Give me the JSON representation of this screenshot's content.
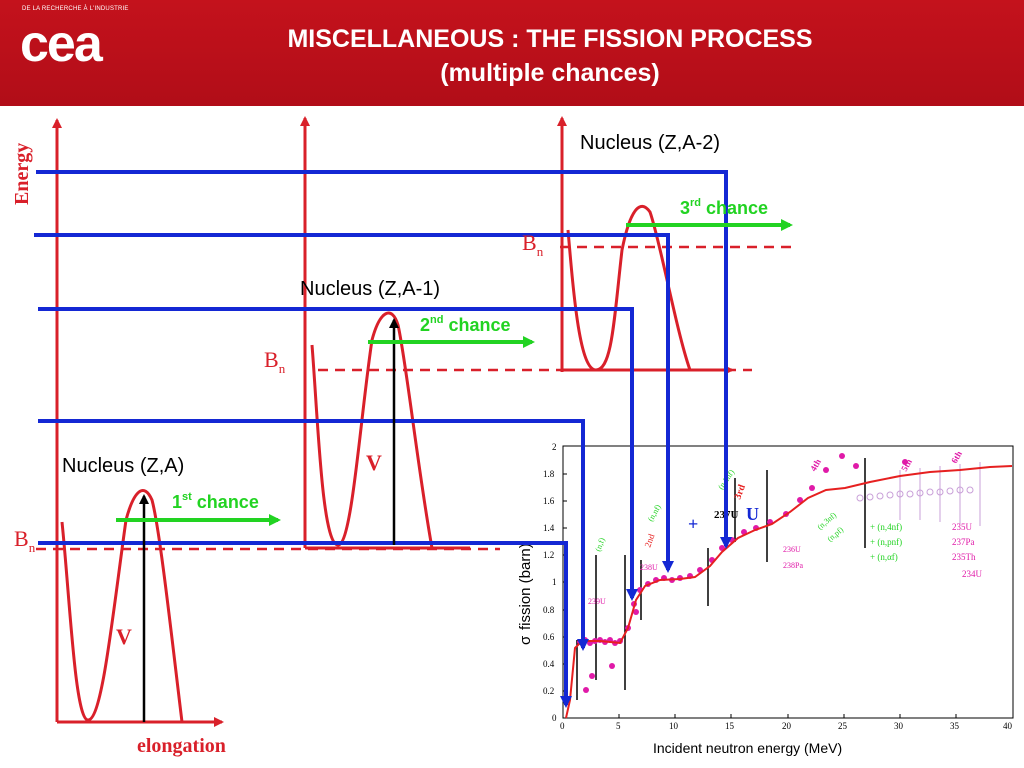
{
  "logo": {
    "tagline": "DE LA RECHERCHE À L'INDUSTRIE",
    "name": "cea"
  },
  "title": {
    "line1": "MISCELLANEOUS : THE FISSION PROCESS",
    "line2": "(multiple chances)"
  },
  "axes": {
    "energy": "Energy",
    "elongation": "elongation"
  },
  "nuclei": {
    "n1": {
      "label": "Nucleus (Z,A)",
      "chance": "1",
      "chance_sup": "st",
      "chance_text": " chance"
    },
    "n2": {
      "label": "Nucleus (Z,A-1)",
      "chance": "2",
      "chance_sup": "nd",
      "chance_text": " chance"
    },
    "n3": {
      "label": "Nucleus (Z,A-2)",
      "chance": "3",
      "chance_sup": "rd",
      "chance_text": " chance"
    }
  },
  "symbols": {
    "B": "B",
    "n": "n",
    "V": "V"
  },
  "colors": {
    "header": "#c0111b",
    "barrier": "#d9202a",
    "level": "#1428d4",
    "chance": "#22d322",
    "sim": "#e62020",
    "data": "#e01aa8"
  },
  "inset": {
    "ylabel_sigma": "σ",
    "ylabel": "fission (barn)",
    "xlabel": "Incident neutron energy (MeV)",
    "yticks": [
      "0",
      "0.2",
      "0.4",
      "0.6",
      "0.8",
      "1",
      "1.2",
      "1.4",
      "1.6",
      "1.8",
      "2"
    ],
    "xticks": [
      "0",
      "5",
      "10",
      "15",
      "20",
      "25",
      "30",
      "35",
      "40"
    ],
    "reactions": [
      "+ (n,4nf)",
      "+ (n,pnf)",
      "+ (n,αf)"
    ],
    "isotopes": [
      "235U",
      "237Pa",
      "235Th",
      "234U"
    ],
    "annotations": [
      "238U",
      "237U",
      "236U",
      "238Pa",
      "239U",
      "2nd",
      "3rd",
      "(n,f)",
      "(n,nf)",
      "(n,2nf)",
      "(n,3nf)",
      "(n,pf)",
      "4th",
      "5th",
      "6th",
      "+"
    ]
  }
}
